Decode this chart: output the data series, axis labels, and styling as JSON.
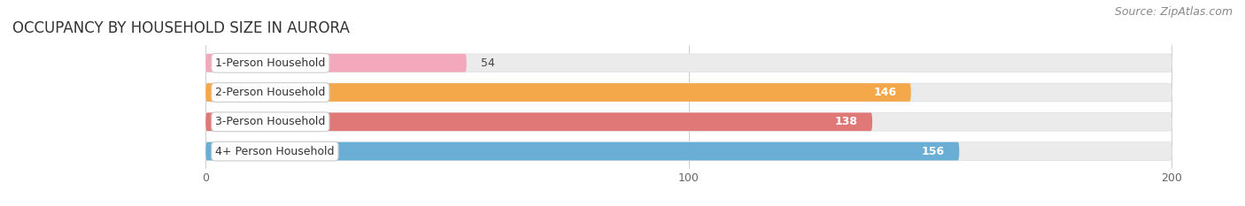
{
  "title": "OCCUPANCY BY HOUSEHOLD SIZE IN AURORA",
  "source": "Source: ZipAtlas.com",
  "categories": [
    "1-Person Household",
    "2-Person Household",
    "3-Person Household",
    "4+ Person Household"
  ],
  "values": [
    54,
    146,
    138,
    156
  ],
  "bar_colors": [
    "#f4a8bb",
    "#f5a84a",
    "#e07878",
    "#6aaed6"
  ],
  "bar_bg_color": "#ebebeb",
  "figsize": [
    14.06,
    2.33
  ],
  "dpi": 100,
  "title_fontsize": 12,
  "source_fontsize": 9,
  "bar_label_fontsize": 9,
  "category_fontsize": 9,
  "tick_fontsize": 9,
  "value_max": 200,
  "xlim_min": -40,
  "xlim_max": 210,
  "xticks": [
    0,
    100,
    200
  ],
  "bg_color": "#ffffff"
}
